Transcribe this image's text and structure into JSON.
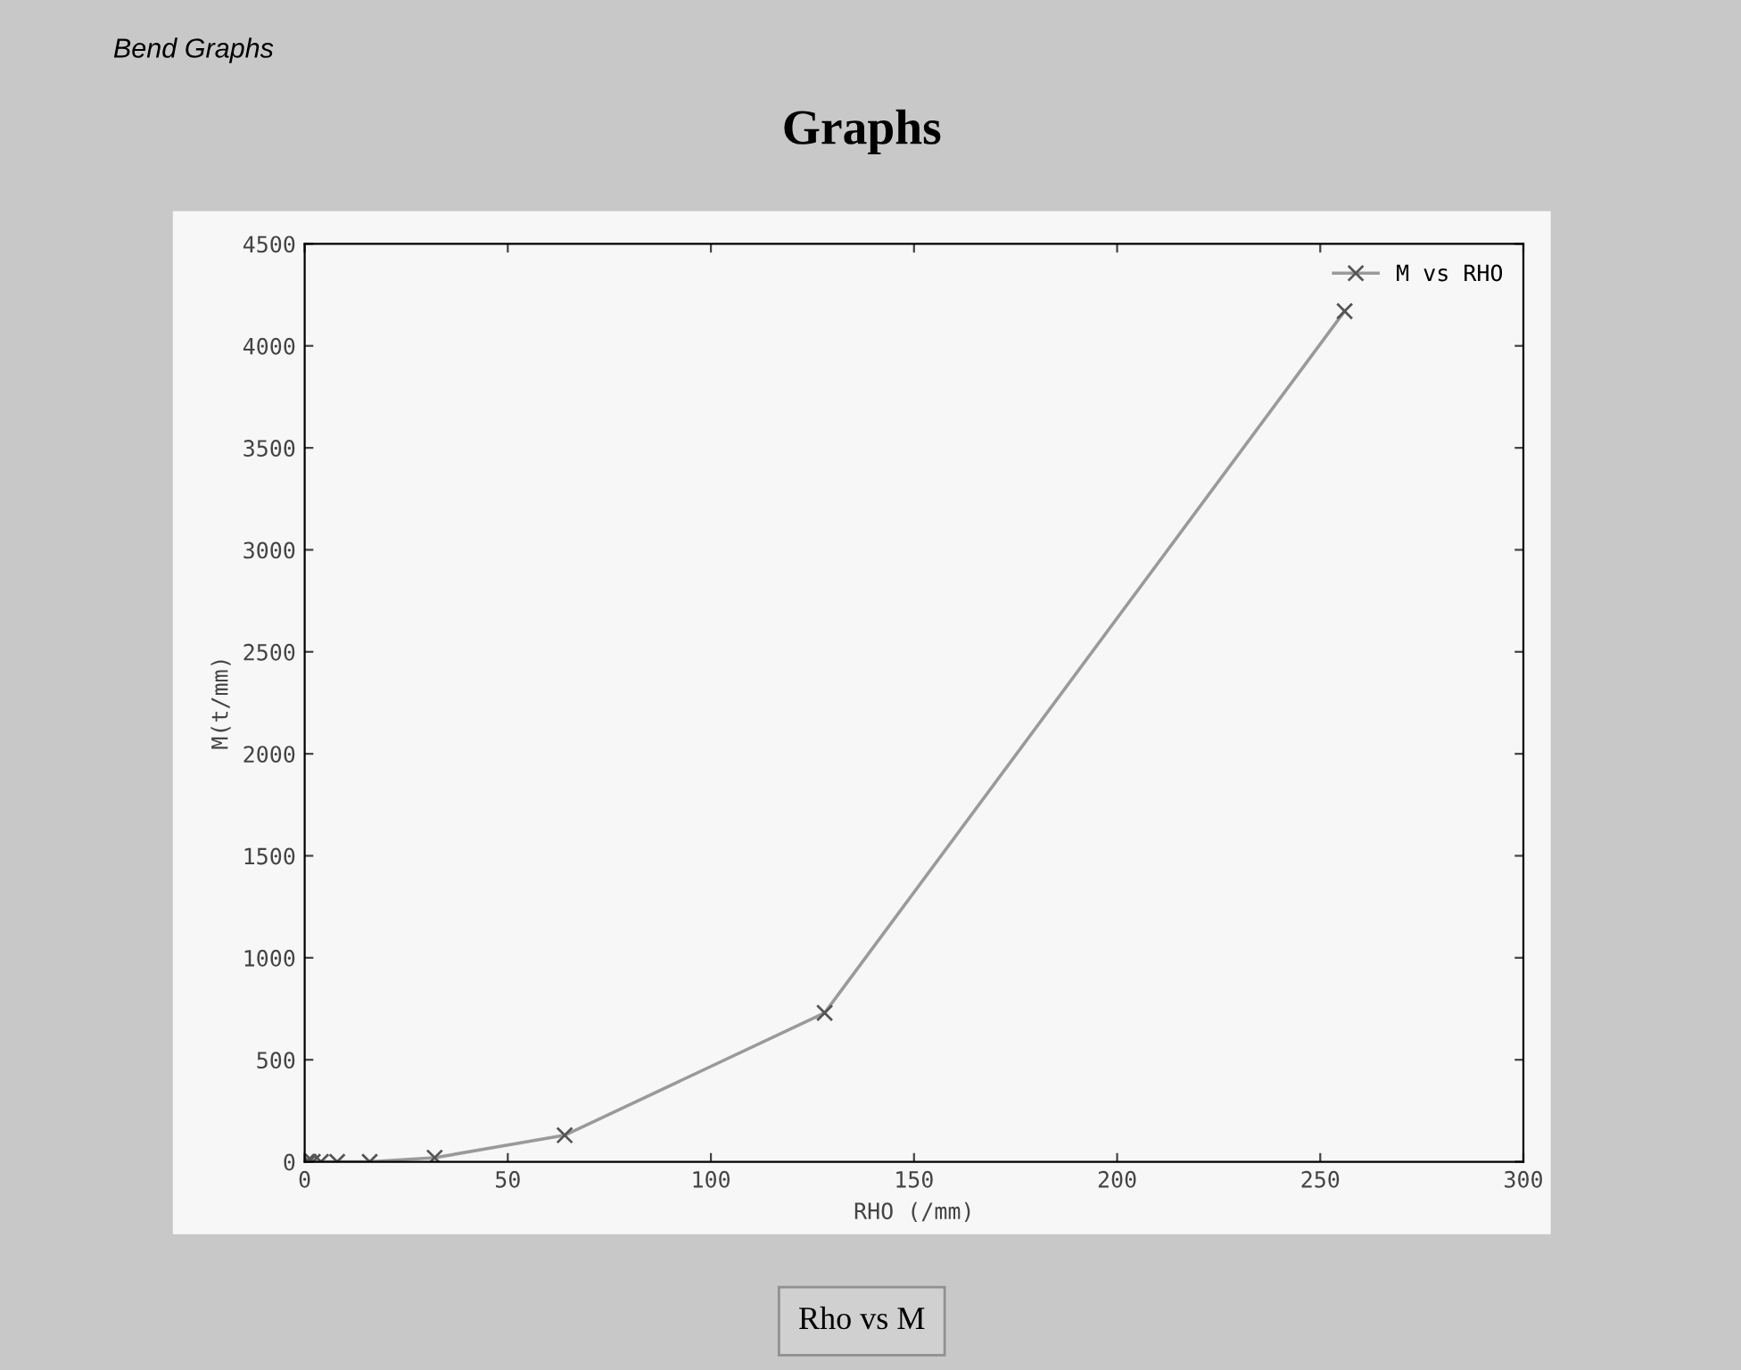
{
  "chart_data": {
    "type": "line",
    "title": "Graphs",
    "xlabel": "RHO (/mm)",
    "ylabel": "M(t/mm)",
    "annotations": [
      "Bend Graphs",
      "Rho vs M"
    ],
    "x": [
      0.5,
      1,
      2,
      4,
      8,
      16,
      32,
      64,
      128,
      256
    ],
    "series": [
      {
        "name": "M vs RHO",
        "color": "#9a9a9a",
        "values": [
          0,
          0,
          0,
          0,
          0,
          0,
          20,
          130,
          730,
          4170
        ]
      }
    ],
    "xlim": [
      0,
      300
    ],
    "xticks": [
      0,
      50,
      100,
      150,
      200,
      250,
      300
    ],
    "ylim": [
      0,
      4500
    ],
    "yticks": [
      0,
      500,
      1000,
      1500,
      2000,
      2500,
      3000,
      3500,
      4000,
      4500
    ],
    "grid": false,
    "legend": "top right",
    "marker": "cross",
    "line_style": "solid"
  }
}
